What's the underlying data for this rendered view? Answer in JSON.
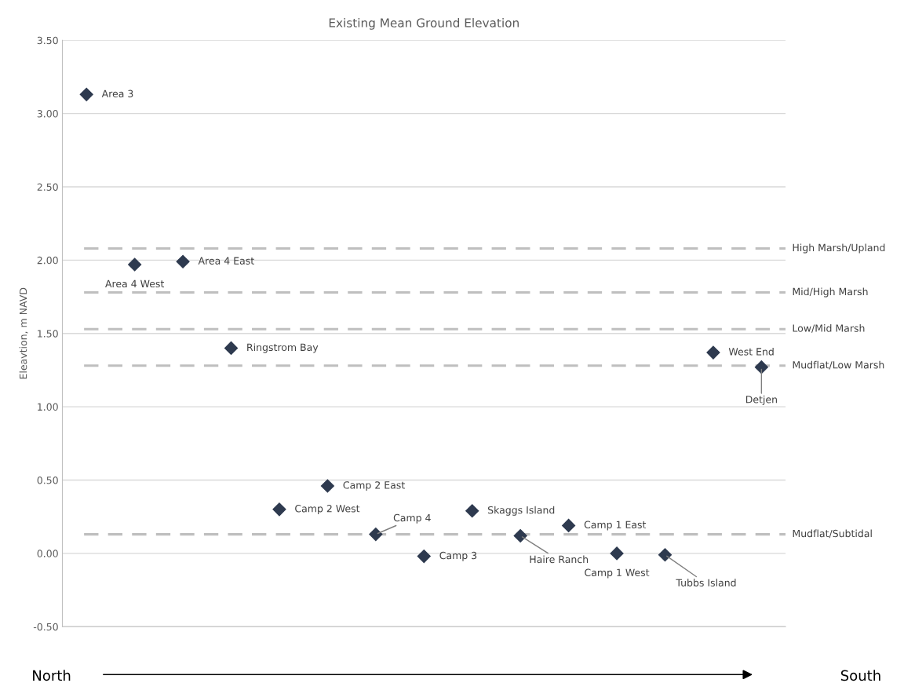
{
  "chart_data": {
    "type": "scatter",
    "title": "Existing Mean Ground Elevation",
    "ylabel": "Eleavtion, m NAVD",
    "categories": [
      null,
      null,
      null,
      null,
      null,
      null,
      null,
      null,
      null,
      null,
      null,
      null,
      null,
      null,
      null
    ],
    "series": [
      {
        "color": "#2e3a4f",
        "values": [
          3.13,
          1.97,
          1.99,
          1.4,
          0.3,
          0.46,
          0.13,
          -0.02,
          0.29,
          0.12,
          0.19,
          0.0,
          -0.01,
          1.37,
          1.27
        ],
        "value_labels": [
          "Area 3",
          "Area 4 West",
          "Area 4 East",
          "Ringstrom Bay",
          "Camp 2 West",
          "Camp 2 East",
          "Camp 4",
          "Camp 3",
          "Skaggs Island",
          "Haire Ranch",
          "Camp 1 East",
          "Camp 1 West",
          "Tubbs Island",
          "West End",
          "Detjen"
        ]
      }
    ],
    "ylim": [
      -0.5,
      3.5
    ],
    "yticks": [
      {
        "value": -0.5,
        "label": "-0.50"
      },
      {
        "value": 0,
        "label": "0.00"
      },
      {
        "value": 0.5,
        "label": "0.50"
      },
      {
        "value": 1,
        "label": "1.00"
      },
      {
        "value": 1.5,
        "label": "1.50"
      },
      {
        "value": 2,
        "label": "2.00"
      },
      {
        "value": 2.5,
        "label": "2.50"
      },
      {
        "value": 3,
        "label": "3.00"
      },
      {
        "value": 3.5,
        "label": "3.50"
      }
    ],
    "grid": "y",
    "marker": "diamond",
    "tick_labels": "y",
    "ref_lines": [
      {
        "axis": "y",
        "value": 2.08,
        "label": "High Marsh/Upland",
        "color": "#bfbfbf",
        "line_style": "dashed"
      },
      {
        "axis": "y",
        "value": 1.78,
        "label": "Mid/High Marsh",
        "color": "#bfbfbf",
        "line_style": "dashed"
      },
      {
        "axis": "y",
        "value": 1.53,
        "label": "Low/Mid Marsh",
        "color": "#bfbfbf",
        "line_style": "dashed"
      },
      {
        "axis": "y",
        "value": 1.28,
        "label": "Mudflat/Low Marsh",
        "color": "#bfbfbf",
        "line_style": "dashed"
      },
      {
        "axis": "y",
        "value": 0.13,
        "label": "Mudflat/Subtidal",
        "color": "#bfbfbf",
        "line_style": "dashed"
      }
    ],
    "annotations": [
      "North",
      "South"
    ]
  }
}
